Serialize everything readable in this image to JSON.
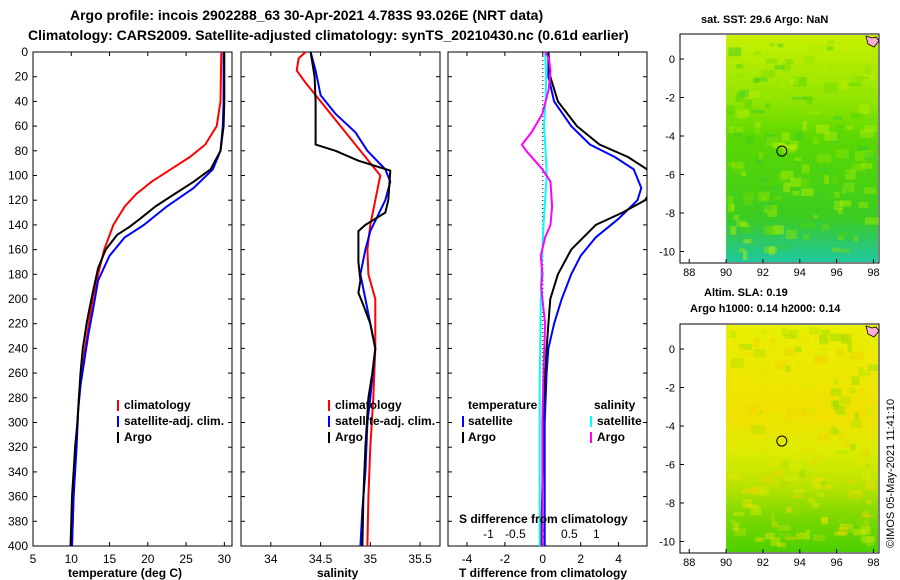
{
  "header": {
    "line1": "Argo profile: incois 2902288_63 30-Apr-2021 4.783S 93.026E (NRT data)",
    "line2": "Climatology: CARS2009. Satellite-adjusted climatology: synTS_20210430.nc (0.61d earlier)"
  },
  "colors": {
    "climatology": "#ff0000",
    "satellite": "#0000ff",
    "argo": "#000000",
    "t_satellite": "#0000ff",
    "s_satellite": "#00ffff",
    "s_argo": "#ff00ff"
  },
  "chart_data": [
    {
      "type": "line",
      "name": "temperature-profile",
      "xlabel": "temperature (deg C)",
      "ylabel": "",
      "xlim": [
        5,
        31
      ],
      "ylim": [
        400,
        0
      ],
      "xticks": [
        "5",
        "10",
        "15",
        "20",
        "25",
        "30"
      ],
      "yticks": [
        "0",
        "20",
        "40",
        "60",
        "80",
        "100",
        "120",
        "140",
        "160",
        "180",
        "200",
        "220",
        "240",
        "260",
        "280",
        "300",
        "320",
        "340",
        "360",
        "380",
        "400"
      ],
      "legend": [
        "climatology",
        "satellite-adj. clim.",
        "Argo"
      ],
      "series": [
        {
          "name": "climatology",
          "color_key": "climatology",
          "points": [
            [
              29.6,
              0
            ],
            [
              29.5,
              40
            ],
            [
              29.0,
              60
            ],
            [
              27.5,
              75
            ],
            [
              25.5,
              85
            ],
            [
              23,
              95
            ],
            [
              20.5,
              105
            ],
            [
              18.5,
              115
            ],
            [
              17,
              125
            ],
            [
              15.5,
              140
            ],
            [
              14.3,
              160
            ],
            [
              13.5,
              180
            ],
            [
              12.8,
              200
            ],
            [
              12.3,
              220
            ],
            [
              11.8,
              240
            ],
            [
              11.3,
              260
            ],
            [
              11,
              280
            ],
            [
              10.8,
              300
            ],
            [
              10.6,
              320
            ],
            [
              10.4,
              340
            ],
            [
              10.3,
              360
            ],
            [
              10.2,
              380
            ],
            [
              10.1,
              400
            ]
          ]
        },
        {
          "name": "satellite-adj. clim.",
          "color_key": "satellite",
          "points": [
            [
              29.9,
              0
            ],
            [
              29.9,
              40
            ],
            [
              29.8,
              60
            ],
            [
              29.5,
              80
            ],
            [
              28.5,
              95
            ],
            [
              26,
              110
            ],
            [
              22.5,
              125
            ],
            [
              19.5,
              140
            ],
            [
              17,
              150
            ],
            [
              15,
              165
            ],
            [
              13.5,
              185
            ],
            [
              12.8,
              210
            ],
            [
              12.2,
              230
            ],
            [
              11.7,
              250
            ],
            [
              11.2,
              270
            ],
            [
              10.9,
              290
            ],
            [
              10.7,
              320
            ],
            [
              10.5,
              340
            ],
            [
              10.3,
              360
            ],
            [
              10.2,
              380
            ],
            [
              10.1,
              400
            ]
          ]
        },
        {
          "name": "Argo",
          "color_key": "argo",
          "points": [
            [
              30.0,
              0
            ],
            [
              30.0,
              40
            ],
            [
              29.9,
              60
            ],
            [
              29.5,
              80
            ],
            [
              28.2,
              95
            ],
            [
              26.0,
              105
            ],
            [
              23.5,
              115
            ],
            [
              21,
              125
            ],
            [
              19,
              135
            ],
            [
              17.5,
              142
            ],
            [
              16,
              148
            ],
            [
              14.5,
              160
            ],
            [
              13.5,
              175
            ],
            [
              12.8,
              195
            ],
            [
              12.3,
              210
            ],
            [
              12.0,
              220
            ],
            [
              11.5,
              240
            ],
            [
              11.2,
              260
            ],
            [
              11.0,
              280
            ],
            [
              10.8,
              300
            ],
            [
              10.5,
              320
            ],
            [
              10.3,
              340
            ],
            [
              10.1,
              360
            ],
            [
              10.0,
              380
            ],
            [
              9.9,
              400
            ]
          ]
        }
      ]
    },
    {
      "type": "line",
      "name": "salinity-profile",
      "xlabel": "salinity",
      "xlim": [
        33.7,
        35.7
      ],
      "ylim": [
        400,
        0
      ],
      "xticks": [
        "34",
        "34.5",
        "35",
        "35.5"
      ],
      "legend": [
        "climatology",
        "satellite-adj. clim.",
        "Argo"
      ],
      "series": [
        {
          "name": "climatology",
          "color_key": "climatology",
          "points": [
            [
              34.35,
              0
            ],
            [
              34.28,
              5
            ],
            [
              34.26,
              15
            ],
            [
              34.35,
              25
            ],
            [
              34.5,
              40
            ],
            [
              34.65,
              55
            ],
            [
              34.8,
              70
            ],
            [
              34.95,
              85
            ],
            [
              35.05,
              95
            ],
            [
              35.1,
              100
            ],
            [
              35.05,
              120
            ],
            [
              35.0,
              140
            ],
            [
              34.97,
              160
            ],
            [
              34.98,
              180
            ],
            [
              35.05,
              200
            ],
            [
              35.05,
              240
            ],
            [
              35.03,
              280
            ],
            [
              35.0,
              320
            ],
            [
              34.98,
              360
            ],
            [
              34.97,
              400
            ]
          ]
        },
        {
          "name": "satellite-adj. clim.",
          "color_key": "satellite",
          "points": [
            [
              34.4,
              0
            ],
            [
              34.45,
              15
            ],
            [
              34.5,
              35
            ],
            [
              34.65,
              50
            ],
            [
              34.85,
              65
            ],
            [
              34.97,
              80
            ],
            [
              35.15,
              95
            ],
            [
              35.2,
              105
            ],
            [
              35.15,
              120
            ],
            [
              35.0,
              145
            ],
            [
              34.95,
              160
            ],
            [
              34.9,
              180
            ],
            [
              34.95,
              200
            ],
            [
              35.0,
              220
            ],
            [
              35.05,
              240
            ],
            [
              35.0,
              280
            ],
            [
              34.97,
              300
            ],
            [
              34.95,
              340
            ],
            [
              34.92,
              370
            ],
            [
              34.9,
              400
            ]
          ]
        },
        {
          "name": "Argo",
          "color_key": "argo",
          "points": [
            [
              34.4,
              0
            ],
            [
              34.44,
              20
            ],
            [
              34.45,
              40
            ],
            [
              34.45,
              75
            ],
            [
              34.65,
              80
            ],
            [
              34.88,
              88
            ],
            [
              35.2,
              96
            ],
            [
              35.18,
              120
            ],
            [
              35.15,
              130
            ],
            [
              34.95,
              140
            ],
            [
              34.88,
              145
            ],
            [
              34.88,
              170
            ],
            [
              34.9,
              185
            ],
            [
              34.88,
              195
            ],
            [
              34.93,
              205
            ],
            [
              35.0,
              220
            ],
            [
              35.05,
              240
            ],
            [
              35.02,
              260
            ],
            [
              34.98,
              280
            ],
            [
              34.95,
              320
            ],
            [
              34.93,
              360
            ],
            [
              34.92,
              400
            ]
          ]
        }
      ]
    },
    {
      "type": "line",
      "name": "difference-profile",
      "xlabel": "T difference from climatology",
      "xlabel_top": "S difference from climatology",
      "xlim": [
        -5,
        5.5
      ],
      "xlim_top": [
        -1.75,
        1.94
      ],
      "ylim": [
        400,
        0
      ],
      "xticks": [
        "-4",
        "-2",
        "0",
        "2",
        "4"
      ],
      "xticks_top": [
        "-1",
        "-0.5",
        "0",
        "0.5",
        "1"
      ],
      "legend_titles": [
        "temperature",
        "salinity"
      ],
      "legend_left": [
        "satellite",
        "Argo"
      ],
      "legend_right": [
        "satellite",
        "Argo"
      ],
      "series": [
        {
          "name": "T satellite",
          "color_key": "t_satellite",
          "points": [
            [
              0.3,
              0
            ],
            [
              0.3,
              20
            ],
            [
              0.6,
              40
            ],
            [
              1.5,
              60
            ],
            [
              2.5,
              75
            ],
            [
              3.8,
              85
            ],
            [
              4.8,
              95
            ],
            [
              5.2,
              110
            ],
            [
              5.0,
              120
            ],
            [
              4.0,
              135
            ],
            [
              2.8,
              150
            ],
            [
              2.0,
              165
            ],
            [
              1.5,
              180
            ],
            [
              1.0,
              200
            ],
            [
              0.6,
              220
            ],
            [
              0.3,
              240
            ],
            [
              0.2,
              260
            ],
            [
              0.1,
              300
            ],
            [
              0.1,
              350
            ],
            [
              0.1,
              400
            ]
          ]
        },
        {
          "name": "T Argo",
          "color_key": "argo",
          "points": [
            [
              0.3,
              0
            ],
            [
              0.4,
              20
            ],
            [
              0.8,
              40
            ],
            [
              1.8,
              60
            ],
            [
              3.0,
              75
            ],
            [
              4.5,
              85
            ],
            [
              5.5,
              95
            ],
            [
              5.8,
              110
            ],
            [
              5.4,
              120
            ],
            [
              4.2,
              130
            ],
            [
              2.8,
              140
            ],
            [
              1.5,
              160
            ],
            [
              0.8,
              180
            ],
            [
              0.4,
              200
            ],
            [
              0.3,
              220
            ],
            [
              0.2,
              240
            ],
            [
              0.1,
              270
            ],
            [
              0.0,
              300
            ],
            [
              0.0,
              340
            ],
            [
              -0.1,
              400
            ]
          ]
        },
        {
          "name": "S satellite",
          "color_key": "s_satellite",
          "points": [
            [
              0.05,
              0
            ],
            [
              0.07,
              20
            ],
            [
              0.06,
              40
            ],
            [
              0.03,
              60
            ],
            [
              0.06,
              80
            ],
            [
              0.08,
              100
            ],
            [
              0.05,
              120
            ],
            [
              0.02,
              140
            ],
            [
              0.0,
              160
            ],
            [
              -0.02,
              180
            ],
            [
              -0.03,
              200
            ],
            [
              -0.04,
              240
            ],
            [
              -0.05,
              270
            ],
            [
              -0.05,
              300
            ],
            [
              -0.05,
              350
            ],
            [
              -0.05,
              400
            ]
          ]
        },
        {
          "name": "S Argo",
          "color_key": "s_argo",
          "points": [
            [
              0.05,
              0
            ],
            [
              0.12,
              5
            ],
            [
              0.15,
              15
            ],
            [
              0.12,
              30
            ],
            [
              0.0,
              50
            ],
            [
              -0.2,
              65
            ],
            [
              -0.38,
              75
            ],
            [
              -0.3,
              80
            ],
            [
              0.0,
              95
            ],
            [
              0.15,
              105
            ],
            [
              0.18,
              125
            ],
            [
              0.15,
              140
            ],
            [
              0.05,
              150
            ],
            [
              -0.03,
              165
            ],
            [
              0.0,
              180
            ],
            [
              -0.02,
              190
            ],
            [
              0.0,
              200
            ],
            [
              0.05,
              220
            ],
            [
              0.02,
              260
            ],
            [
              0.0,
              300
            ],
            [
              0.0,
              350
            ],
            [
              0.0,
              400
            ]
          ]
        }
      ]
    },
    {
      "type": "heatmap",
      "name": "sst-map",
      "title": "sat. SST: 29.6 Argo: NaN",
      "xlim": [
        87.5,
        98.3
      ],
      "ylim": [
        -10.6,
        1.3
      ],
      "xticks": [
        "88",
        "90",
        "92",
        "94",
        "96",
        "98"
      ],
      "yticks": [
        "0",
        "-2",
        "-4",
        "-6",
        "-8",
        "-10"
      ],
      "data_xmin": 90,
      "marker": {
        "lon": 93.026,
        "lat": -4.783
      }
    },
    {
      "type": "heatmap",
      "name": "sla-map",
      "title": "Altim. SLA: 0.19",
      "title2": "Argo h1000: 0.14 h2000: 0.14",
      "xlim": [
        87.5,
        98.3
      ],
      "ylim": [
        -10.6,
        1.3
      ],
      "xticks": [
        "88",
        "90",
        "92",
        "94",
        "96",
        "98"
      ],
      "yticks": [
        "0",
        "-2",
        "-4",
        "-6",
        "-8",
        "-10"
      ],
      "data_xmin": 90,
      "marker": {
        "lon": 93.026,
        "lat": -4.783
      }
    }
  ],
  "stamp": "©IMOS 05-May-2021 11:41:10"
}
